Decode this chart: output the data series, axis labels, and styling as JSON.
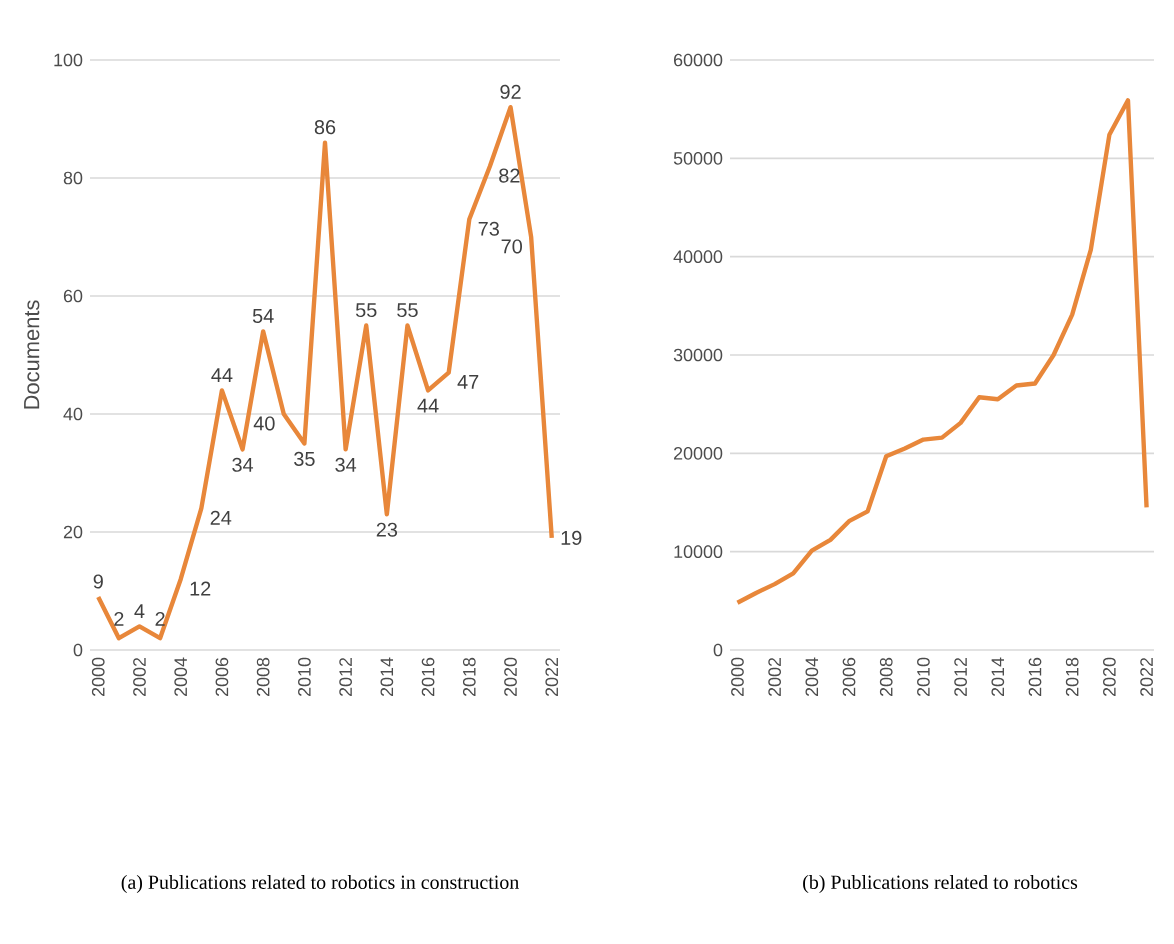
{
  "chart_data": [
    {
      "type": "line",
      "categories": [
        "2000",
        null,
        "2002",
        null,
        "2004",
        null,
        "2006",
        null,
        "2008",
        null,
        "2010",
        null,
        "2012",
        null,
        "2014",
        null,
        "2016",
        null,
        "2018",
        null,
        "2020",
        null,
        "2022"
      ],
      "ylabel": "Documents",
      "series": [
        {
          "color": "#e8873a",
          "values": [
            9,
            2,
            4,
            2,
            12,
            24,
            44,
            34,
            54,
            40,
            35,
            86,
            34,
            55,
            23,
            55,
            44,
            47,
            73,
            82,
            92,
            70,
            19
          ]
        }
      ],
      "ylim": [
        0,
        100
      ],
      "yticks": [
        0,
        20,
        40,
        60,
        80,
        100
      ],
      "grid": "y",
      "marker": "none",
      "data_labels": true,
      "annotations": [
        "(a) Publications related to robotics in construction"
      ]
    },
    {
      "type": "line",
      "categories": [
        "2000",
        null,
        "2002",
        null,
        "2004",
        null,
        "2006",
        null,
        "2008",
        null,
        "2010",
        null,
        "2012",
        null,
        "2014",
        null,
        "2016",
        null,
        "2018",
        null,
        "2020",
        null,
        "2022"
      ],
      "series": [
        {
          "color": "#e8873a",
          "values": [
            4800,
            5800,
            6700,
            7800,
            10100,
            11200,
            13100,
            14100,
            19700,
            20500,
            21400,
            21600,
            23100,
            25700,
            25500,
            26900,
            27100,
            30000,
            34100,
            40700,
            52400,
            55900,
            14500
          ]
        }
      ],
      "ylim": [
        0,
        60000
      ],
      "yticks": [
        0,
        10000,
        20000,
        30000,
        40000,
        50000,
        60000
      ],
      "grid": "y",
      "marker": "none",
      "annotations": [
        "(b) Publications related to robotics"
      ]
    }
  ]
}
